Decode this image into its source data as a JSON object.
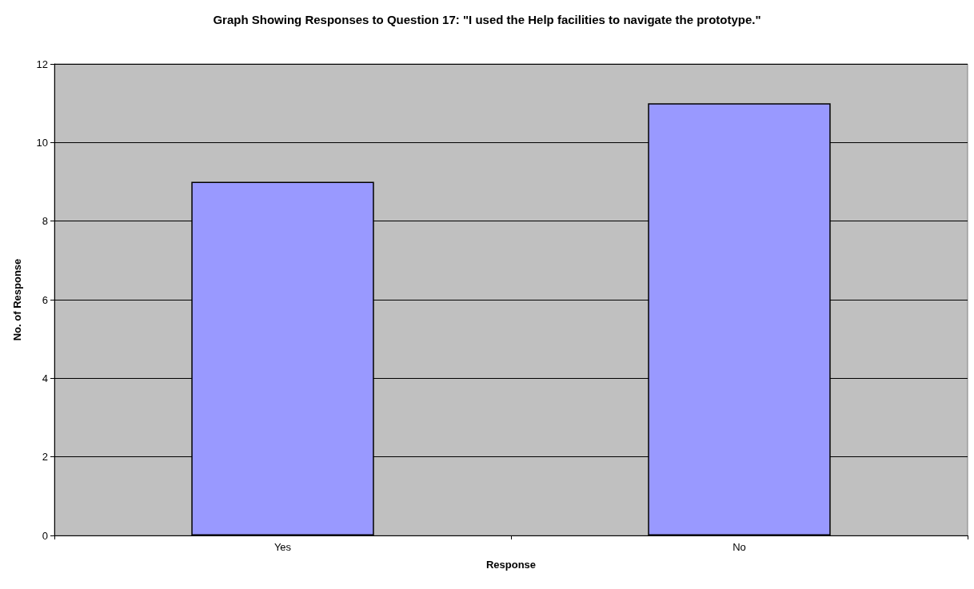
{
  "chart_data": {
    "type": "bar",
    "title": "Graph Showing Responses to Question 17: \"I used the Help facilities to navigate the prototype.\"",
    "xlabel": "Response",
    "ylabel": "No. of Response",
    "categories": [
      "Yes",
      "No"
    ],
    "values": [
      9,
      11
    ],
    "color": "#9999ff",
    "ylim": [
      0,
      12
    ],
    "yticks": [
      0,
      2,
      4,
      6,
      8,
      10,
      12
    ],
    "grid": "y"
  }
}
